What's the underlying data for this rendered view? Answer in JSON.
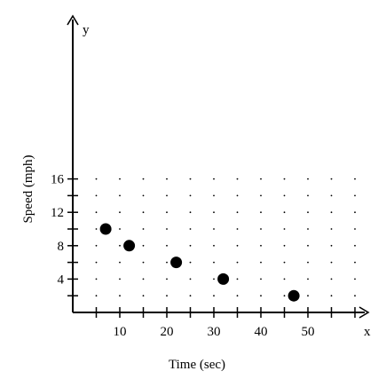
{
  "chart_data": {
    "type": "scatter",
    "title": "",
    "xlabel": "Time (sec)",
    "ylabel": "Speed (mph)",
    "x_axis_letter": "x",
    "y_axis_letter": "y",
    "xlim": [
      0,
      60
    ],
    "ylim": [
      0,
      17
    ],
    "x_ticks": [
      10,
      20,
      30,
      40,
      50
    ],
    "y_ticks": [
      4,
      8,
      12,
      16
    ],
    "x_minor_step": 5,
    "y_minor_step": 2,
    "grid": "dotted",
    "point_color": "#000000",
    "points": [
      {
        "x": 7,
        "y": 10
      },
      {
        "x": 12,
        "y": 8
      },
      {
        "x": 22,
        "y": 6
      },
      {
        "x": 32,
        "y": 4
      },
      {
        "x": 47,
        "y": 2
      }
    ]
  }
}
